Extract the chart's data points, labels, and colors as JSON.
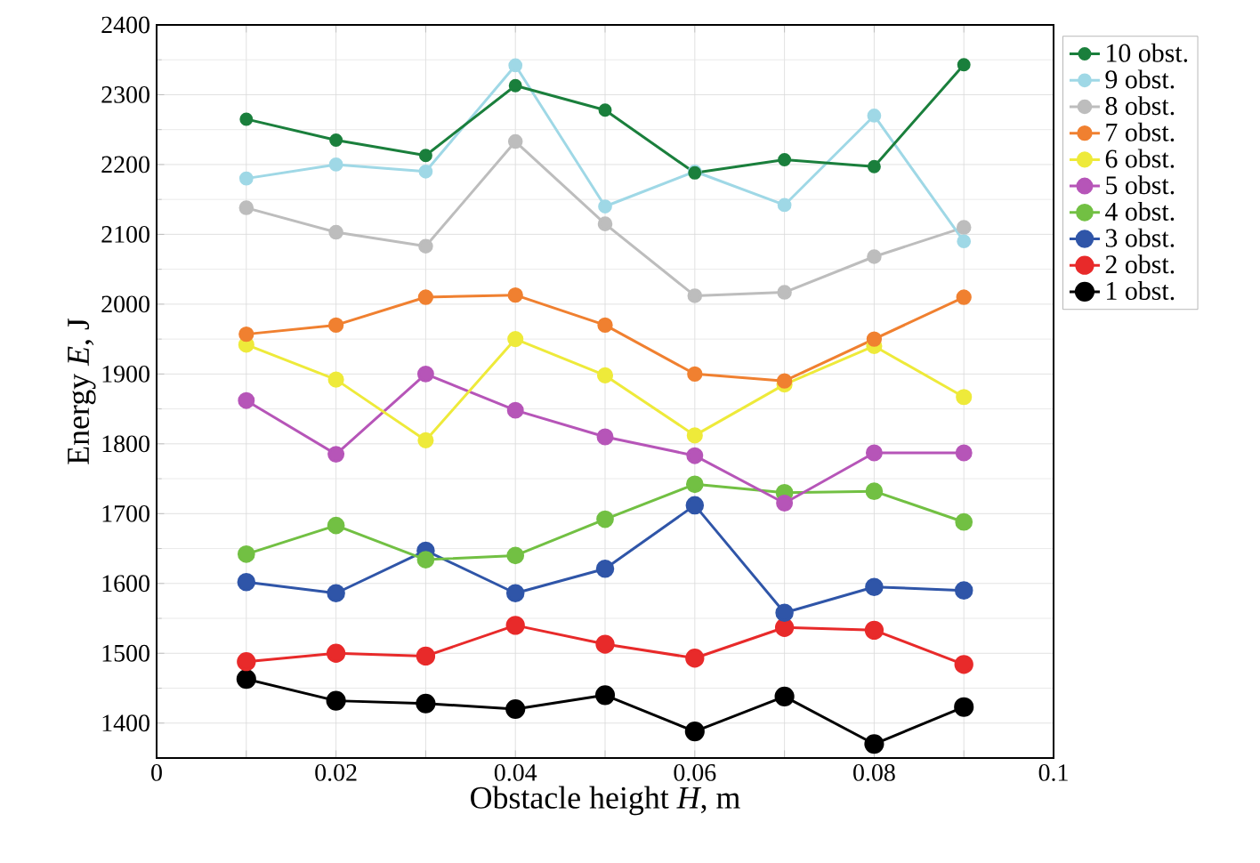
{
  "chart_data": {
    "type": "line",
    "xlabel": "Obstacle height *H*, m",
    "ylabel": "Energy *E*,  J",
    "x": [
      0.01,
      0.02,
      0.03,
      0.04,
      0.05,
      0.06,
      0.07,
      0.08,
      0.09
    ],
    "xlim": [
      0,
      0.1
    ],
    "xticks": [
      0,
      {
        "value": 0.01,
        "label": null
      },
      0.02,
      {
        "value": 0.03,
        "label": null
      },
      0.04,
      {
        "value": 0.05,
        "label": null
      },
      0.06,
      {
        "value": 0.07,
        "label": null
      },
      0.08,
      {
        "value": 0.09,
        "label": null
      },
      0.1
    ],
    "ylim": [
      1350,
      2400
    ],
    "yticks": [
      1400,
      1500,
      1600,
      1700,
      1800,
      1900,
      2000,
      2100,
      2200,
      2300,
      2400
    ],
    "grid": true,
    "legend": "right",
    "marker": "circle",
    "line_style": "solid",
    "series": [
      {
        "name": "10 obst.",
        "color": "#1a7f3c",
        "values": [
          2265,
          2235,
          2213,
          2313,
          2278,
          2188,
          2207,
          2197,
          2343
        ]
      },
      {
        "name": "9 obst.",
        "color": "#9fd8e6",
        "values": [
          2180,
          2200,
          2190,
          2342,
          2140,
          2190,
          2142,
          2270,
          2090
        ]
      },
      {
        "name": "8 obst.",
        "color": "#bdbdbd",
        "values": [
          2138,
          2103,
          2083,
          2233,
          2115,
          2012,
          2017,
          2068,
          2110
        ]
      },
      {
        "name": "7 obst.",
        "color": "#f08030",
        "values": [
          1957,
          1970,
          2010,
          2013,
          1970,
          1900,
          1890,
          1950,
          2010
        ]
      },
      {
        "name": "6 obst.",
        "color": "#eeea3a",
        "values": [
          1942,
          1892,
          1805,
          1950,
          1898,
          1812,
          1885,
          1940,
          1867
        ]
      },
      {
        "name": "5 obst.",
        "color": "#b655b8",
        "values": [
          1862,
          1785,
          1900,
          1848,
          1810,
          1783,
          1715,
          1787,
          1787
        ]
      },
      {
        "name": "4 obst.",
        "color": "#72c043",
        "values": [
          1642,
          1683,
          1634,
          1640,
          1692,
          1742,
          1730,
          1732,
          1688
        ]
      },
      {
        "name": "3 obst.",
        "color": "#2f55a8",
        "values": [
          1602,
          1586,
          1647,
          1586,
          1621,
          1712,
          1558,
          1595,
          1590
        ]
      },
      {
        "name": "2 obst.",
        "color": "#e82a2a",
        "values": [
          1488,
          1500,
          1496,
          1540,
          1513,
          1493,
          1537,
          1533,
          1484
        ]
      },
      {
        "name": "1 obst.",
        "color": "#000000",
        "values": [
          1463,
          1432,
          1428,
          1420,
          1440,
          1388,
          1438,
          1370,
          1423
        ]
      }
    ]
  }
}
